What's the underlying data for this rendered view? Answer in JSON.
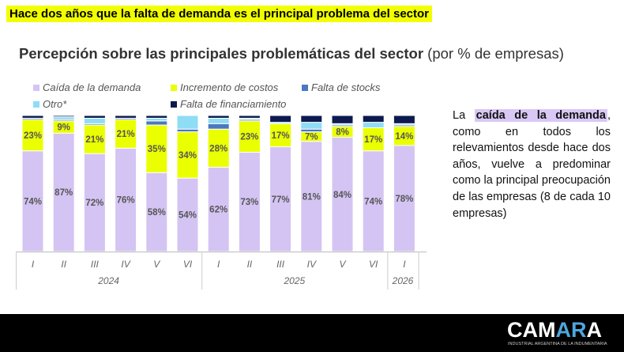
{
  "banner": "Hace dos años que la falta de demanda es el principal problema del sector",
  "chart_data": {
    "type": "bar",
    "stacked": true,
    "title_bold": "Percepción sobre las principales problemáticas del sector",
    "title_rest": " (por % de empresas)",
    "categories": [
      "I",
      "II",
      "III",
      "IV",
      "V",
      "VI",
      "I",
      "II",
      "III",
      "IV",
      "V",
      "VI",
      "I"
    ],
    "years": [
      {
        "label": "2024",
        "span": 6
      },
      {
        "label": "2025",
        "span": 6
      },
      {
        "label": "2026",
        "span": 1
      }
    ],
    "ylim": [
      0,
      100
    ],
    "series": [
      {
        "name": "Caída de la demanda",
        "color": "#d4c4f3",
        "labels": true,
        "values": [
          74,
          87,
          72,
          76,
          58,
          54,
          62,
          73,
          77,
          81,
          84,
          74,
          78
        ]
      },
      {
        "name": "Incremento de costos",
        "color": "#eaff00",
        "labels": true,
        "values": [
          23,
          9,
          21,
          21,
          35,
          34,
          28,
          23,
          17,
          7,
          8,
          17,
          14
        ]
      },
      {
        "name": "Falta de stocks",
        "color": "#4a78c2",
        "labels": false,
        "values": [
          1,
          1,
          1,
          1,
          3,
          2,
          4,
          1,
          0,
          2,
          1,
          0,
          1
        ]
      },
      {
        "name": "Otro*",
        "color": "#8fdcf5",
        "labels": false,
        "values": [
          0,
          2,
          4,
          0,
          2,
          10,
          4,
          1,
          1,
          5,
          1,
          4,
          1
        ]
      },
      {
        "name": "Falta de financiamiento",
        "color": "#0c1a4f",
        "labels": false,
        "values": [
          2,
          1,
          2,
          2,
          2,
          0,
          2,
          2,
          5,
          5,
          6,
          5,
          6
        ]
      }
    ]
  },
  "side": {
    "pre": "La ",
    "highlight": "caída de la demanda",
    "post": ", como en todos los relevamientos desde hace dos años, vuelve a predominar como la principal preocupación de las empresas (8 de cada 10 empresas)"
  },
  "footer": {
    "logo_a": "CAM",
    "logo_b": "AR",
    "logo_c": "A",
    "logo_sub": "INDUSTRIAL ARGENTINA DE LA INDUMENTARIA"
  }
}
